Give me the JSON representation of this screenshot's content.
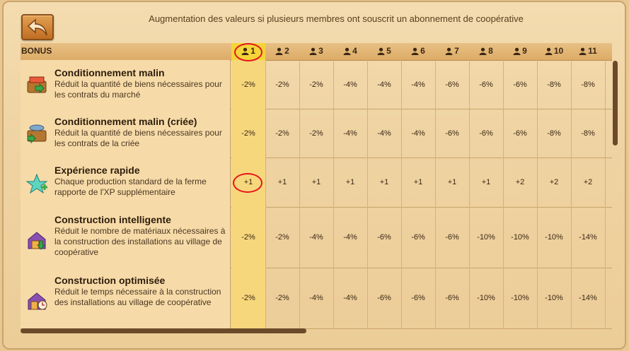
{
  "header": {
    "title": "Augmentation des valeurs si plusieurs membres ont souscrit un abonnement de coopérative",
    "back_icon": "back-arrow-icon"
  },
  "table": {
    "bonus_header": "BONUS",
    "columns": [
      "1",
      "2",
      "3",
      "4",
      "5",
      "6",
      "7",
      "8",
      "9",
      "10",
      "11"
    ],
    "rows": [
      {
        "icon": "package-crate-icon",
        "title": "Conditionnement malin",
        "desc": "Réduit la quantité de biens nécessaires pour les contrats du marché",
        "values": [
          "-2%",
          "-2%",
          "-2%",
          "-4%",
          "-4%",
          "-4%",
          "-6%",
          "-6%",
          "-6%",
          "-8%",
          "-8%"
        ]
      },
      {
        "icon": "fish-crate-icon",
        "title": "Conditionnement malin (criée)",
        "desc": "Réduit la quantité de biens nécessaires pour les contrats de la criée",
        "values": [
          "-2%",
          "-2%",
          "-2%",
          "-4%",
          "-4%",
          "-4%",
          "-6%",
          "-6%",
          "-6%",
          "-8%",
          "-8%"
        ]
      },
      {
        "icon": "star-plus-icon",
        "title": "Expérience rapide",
        "desc": "Chaque production standard de la ferme rapporte de l'XP supplémentaire",
        "values": [
          "+1",
          "+1",
          "+1",
          "+1",
          "+1",
          "+1",
          "+1",
          "+1",
          "+2",
          "+2",
          "+2"
        ]
      },
      {
        "icon": "house-down-icon",
        "title": "Construction intelligente",
        "desc": "Réduit le nombre de matériaux nécessaires à la construction des installations au village de coopérative",
        "values": [
          "-2%",
          "-2%",
          "-4%",
          "-4%",
          "-6%",
          "-6%",
          "-6%",
          "-10%",
          "-10%",
          "-10%",
          "-14%"
        ]
      },
      {
        "icon": "house-clock-icon",
        "title": "Construction optimisée",
        "desc": "Réduit le temps nécessaire à la construction des installations au village de coopérative",
        "values": [
          "-2%",
          "-2%",
          "-4%",
          "-4%",
          "-6%",
          "-6%",
          "-6%",
          "-10%",
          "-10%",
          "-10%",
          "-14%"
        ]
      }
    ]
  },
  "colors": {
    "highlight": "#f2cf2a",
    "annotation": "#e5141b",
    "header_bg": "#dcab66"
  }
}
